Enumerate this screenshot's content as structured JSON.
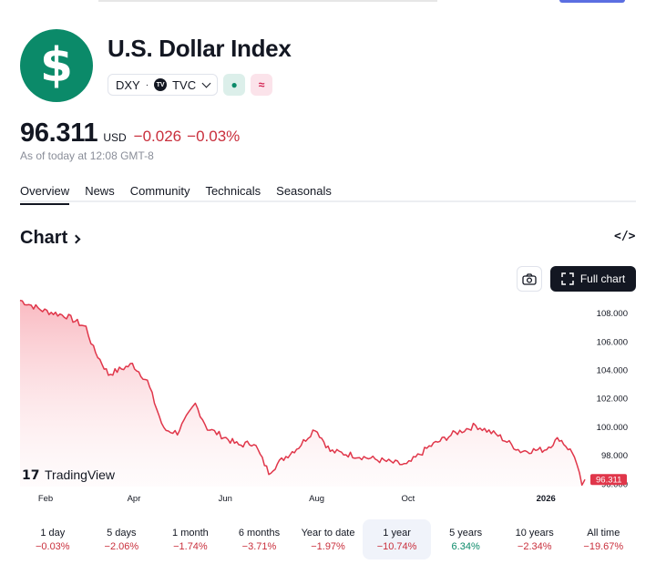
{
  "symbol": {
    "name": "U.S. Dollar Index",
    "logo_glyph": "$",
    "logo_color": "#0b8a69",
    "ticker": "DXY",
    "exchange": "TVC",
    "exchange_badge": "TV",
    "tag_green_glyph": "●",
    "tag_pink_glyph": "≈"
  },
  "quote": {
    "price": "96.311",
    "currency": "USD",
    "change": "−0.026",
    "change_percent": "−0.03%",
    "as_of": "As of today at 12:08 GMT-8",
    "negative_color": "#c92f3c"
  },
  "tabs": [
    {
      "label": "Overview",
      "active": true
    },
    {
      "label": "News",
      "active": false
    },
    {
      "label": "Community",
      "active": false
    },
    {
      "label": "Technicals",
      "active": false
    },
    {
      "label": "Seasonals",
      "active": false
    }
  ],
  "chart_section": {
    "heading": "Chart",
    "embed_glyph": "</>",
    "camera_icon": "camera-icon",
    "full_chart_label": "Full chart",
    "watermark": "TradingView"
  },
  "chart_data": {
    "type": "area",
    "title": "",
    "xlabel": "",
    "ylabel": "",
    "x_tick_labels": [
      "Feb",
      "Apr",
      "Jun",
      "Aug",
      "Oct",
      "2026"
    ],
    "y_tick_labels": [
      "108.000",
      "106.000",
      "104.000",
      "102.000",
      "100.000",
      "98.000",
      "96.000"
    ],
    "y_ticks": [
      108,
      106,
      104,
      102,
      100,
      98,
      96
    ],
    "ylim": [
      95.8,
      109.0
    ],
    "last_value_label": "96.311",
    "line_color": "#e0364a",
    "grid": false,
    "x": [
      "2025-01-15",
      "2025-01-30",
      "2025-02-15",
      "2025-02-28",
      "2025-03-05",
      "2025-03-15",
      "2025-03-31",
      "2025-04-10",
      "2025-04-21",
      "2025-04-30",
      "2025-05-12",
      "2025-05-20",
      "2025-05-31",
      "2025-06-10",
      "2025-06-20",
      "2025-06-30",
      "2025-07-10",
      "2025-07-20",
      "2025-07-31",
      "2025-08-10",
      "2025-08-31",
      "2025-09-15",
      "2025-09-30",
      "2025-10-15",
      "2025-10-31",
      "2025-11-15",
      "2025-11-30",
      "2025-12-15",
      "2025-12-31",
      "2026-01-10",
      "2026-01-20",
      "2026-01-25",
      "2026-01-27"
    ],
    "series": [
      {
        "values": [
          108.9,
          108.2,
          107.8,
          107.0,
          105.5,
          103.7,
          104.4,
          103.2,
          99.8,
          99.6,
          101.6,
          99.9,
          99.3,
          98.7,
          98.9,
          96.8,
          97.8,
          98.6,
          99.9,
          98.3,
          97.9,
          97.6,
          97.3,
          98.6,
          99.5,
          100.1,
          99.4,
          98.3,
          98.4,
          99.2,
          98.0,
          95.9,
          96.3
        ]
      }
    ]
  },
  "periods": [
    {
      "label": "1 day",
      "value": "−0.03%",
      "direction": "neg",
      "selected": false
    },
    {
      "label": "5 days",
      "value": "−2.06%",
      "direction": "neg",
      "selected": false
    },
    {
      "label": "1 month",
      "value": "−1.74%",
      "direction": "neg",
      "selected": false
    },
    {
      "label": "6 months",
      "value": "−3.71%",
      "direction": "neg",
      "selected": false
    },
    {
      "label": "Year to date",
      "value": "−1.97%",
      "direction": "neg",
      "selected": false
    },
    {
      "label": "1 year",
      "value": "−10.74%",
      "direction": "neg",
      "selected": true
    },
    {
      "label": "5 years",
      "value": "6.34%",
      "direction": "pos",
      "selected": false
    },
    {
      "label": "10 years",
      "value": "−2.34%",
      "direction": "neg",
      "selected": false
    },
    {
      "label": "All time",
      "value": "−19.67%",
      "direction": "neg",
      "selected": false
    }
  ]
}
